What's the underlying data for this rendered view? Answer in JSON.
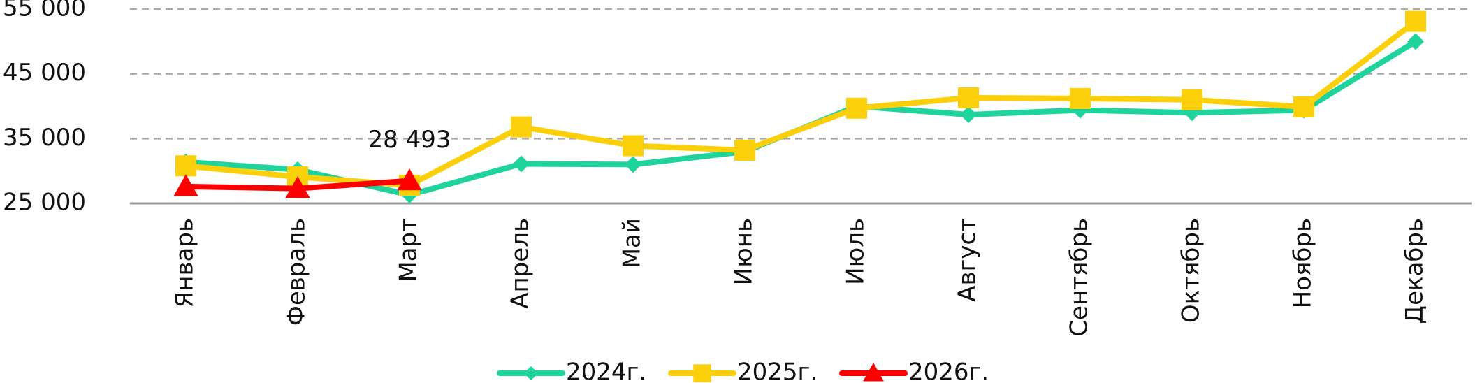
{
  "chart_data": {
    "type": "line",
    "categories": [
      "Январь",
      "Февраль",
      "Март",
      "Апрель",
      "Май",
      "Июнь",
      "Июль",
      "Август",
      "Сентябрь",
      "Октябрь",
      "Ноябрь",
      "Декабрь"
    ],
    "series": [
      {
        "name": "2024г.",
        "color": "#1fd39d",
        "marker": "diamond",
        "values": [
          31400,
          30200,
          26300,
          31100,
          31000,
          33000,
          40000,
          38700,
          39400,
          39000,
          39400,
          50000
        ]
      },
      {
        "name": "2025г.",
        "color": "#fccf0b",
        "marker": "square",
        "values": [
          30800,
          29100,
          27800,
          36800,
          33900,
          33200,
          39700,
          41300,
          41200,
          41000,
          39900,
          53100
        ]
      },
      {
        "name": "2026г.",
        "color": "#ff0000",
        "marker": "triangle",
        "values": [
          27600,
          27300,
          28493,
          null,
          null,
          null,
          null,
          null,
          null,
          null,
          null,
          null
        ],
        "value_labels": [
          null,
          null,
          "28 493",
          null,
          null,
          null,
          null,
          null,
          null,
          null,
          null,
          null
        ]
      }
    ],
    "ylim": [
      25000,
      55000
    ],
    "yticks": [
      {
        "value": 25000,
        "label": "25 000"
      },
      {
        "value": 35000,
        "label": "35 000"
      },
      {
        "value": 45000,
        "label": "45 000"
      },
      {
        "value": 55000,
        "label": "55 000"
      }
    ],
    "grid": true,
    "legend": "bottom"
  }
}
